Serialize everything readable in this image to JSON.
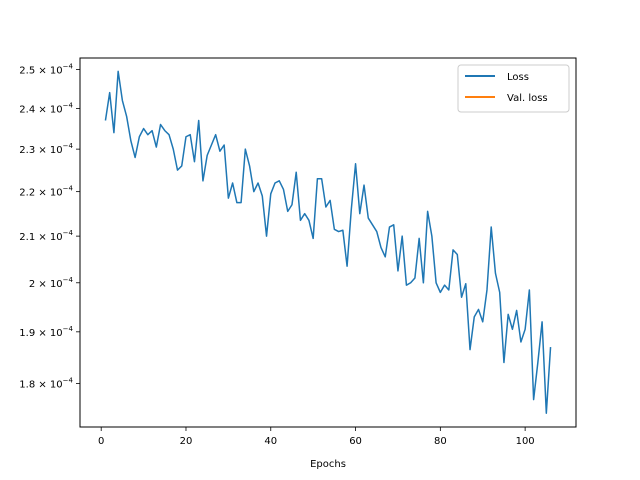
{
  "chart_data": {
    "type": "line",
    "xlabel": "Epochs",
    "ylabel": "",
    "xlim": [
      -5,
      112
    ],
    "ylim": [
      0.000172,
      0.000253
    ],
    "y_scale": "log",
    "grid": false,
    "legend_position": "top-right",
    "x_ticks": [
      0,
      20,
      40,
      60,
      80,
      100
    ],
    "y_ticks": [
      {
        "value": 0.00025,
        "mantissa": "2.5",
        "exponent": "−4"
      },
      {
        "value": 0.00024,
        "mantissa": "2.4",
        "exponent": "−4"
      },
      {
        "value": 0.00023,
        "mantissa": "2.3",
        "exponent": "−4"
      },
      {
        "value": 0.00022,
        "mantissa": "2.2",
        "exponent": "−4"
      },
      {
        "value": 0.00021,
        "mantissa": "2.1",
        "exponent": "−4"
      },
      {
        "value": 0.0002,
        "mantissa": "2",
        "exponent": "−4"
      },
      {
        "value": 0.00019,
        "mantissa": "1.9",
        "exponent": "−4"
      },
      {
        "value": 0.00018,
        "mantissa": "1.8",
        "exponent": "−4"
      }
    ],
    "series": [
      {
        "name": "Loss",
        "color": "#1f77b4",
        "x": [
          1,
          2,
          3,
          4,
          5,
          6,
          7,
          8,
          9,
          10,
          11,
          12,
          13,
          14,
          15,
          16,
          17,
          18,
          19,
          20,
          21,
          22,
          23,
          24,
          25,
          26,
          27,
          28,
          29,
          30,
          31,
          32,
          33,
          34,
          35,
          36,
          37,
          38,
          39,
          40,
          41,
          42,
          43,
          44,
          45,
          46,
          47,
          48,
          49,
          50,
          51,
          52,
          53,
          54,
          55,
          56,
          57,
          58,
          59,
          60,
          61,
          62,
          63,
          64,
          65,
          66,
          67,
          68,
          69,
          70,
          71,
          72,
          73,
          74,
          75,
          76,
          77,
          78,
          79,
          80,
          81,
          82,
          83,
          84,
          85,
          86,
          87,
          88,
          89,
          90,
          91,
          92,
          93,
          94,
          95,
          96,
          97,
          98,
          99,
          100,
          101,
          102,
          103,
          104,
          105,
          106
        ],
        "values": [
          0.000237,
          0.000244,
          0.000234,
          0.0002495,
          0.000242,
          0.000238,
          0.000232,
          0.000228,
          0.000233,
          0.000235,
          0.0002335,
          0.0002345,
          0.0002305,
          0.000236,
          0.0002345,
          0.0002335,
          0.00023,
          0.000225,
          0.000226,
          0.000233,
          0.0002335,
          0.000227,
          0.000237,
          0.0002225,
          0.0002285,
          0.000231,
          0.0002335,
          0.0002295,
          0.000231,
          0.0002185,
          0.000222,
          0.0002175,
          0.0002175,
          0.00023,
          0.000226,
          0.00022,
          0.000222,
          0.000219,
          0.00021,
          0.0002195,
          0.000222,
          0.0002225,
          0.0002205,
          0.0002155,
          0.000217,
          0.0002245,
          0.0002135,
          0.000215,
          0.0002135,
          0.0002095,
          0.000223,
          0.000223,
          0.0002165,
          0.000218,
          0.0002115,
          0.000211,
          0.0002113,
          0.0002035,
          0.000216,
          0.0002265,
          0.000215,
          0.0002215,
          0.000214,
          0.0002125,
          0.000211,
          0.0002075,
          0.0002055,
          0.000212,
          0.0002125,
          0.0002025,
          0.00021,
          0.0001995,
          0.0002,
          0.000201,
          0.0002095,
          0.0002,
          0.0002155,
          0.00021,
          0.0002,
          0.000198,
          0.0001995,
          0.0001985,
          0.000207,
          0.000206,
          0.000197,
          0.0001998,
          0.0001865,
          0.000193,
          0.0001945,
          0.000192,
          0.0001985,
          0.000212,
          0.000202,
          0.000198,
          0.000184,
          0.0001935,
          0.0001905,
          0.0001943,
          0.000188,
          0.0001905,
          0.0001985,
          0.000177,
          0.000184,
          0.000192,
          0.0001745,
          0.000187
        ]
      },
      {
        "name": "Val. loss",
        "color": "#ff7f0e",
        "x": [],
        "values": []
      }
    ]
  }
}
